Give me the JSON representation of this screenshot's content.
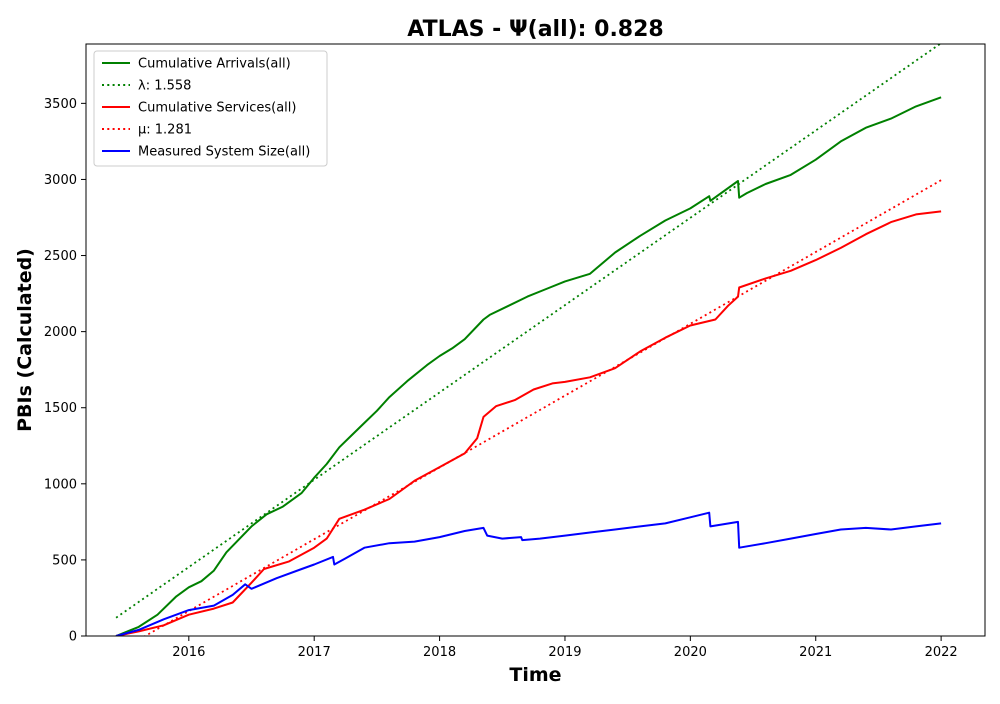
{
  "chart_data": {
    "type": "line",
    "title": "ATLAS -  Ψ(all): 0.828",
    "xlabel": "Time",
    "ylabel": "PBIs (Calculated)",
    "xlim": [
      2015.18,
      2022.35
    ],
    "ylim": [
      0,
      3890
    ],
    "x_ticks": [
      2016,
      2017,
      2018,
      2019,
      2020,
      2021,
      2022
    ],
    "x_tick_labels": [
      "2016",
      "2017",
      "2018",
      "2019",
      "2020",
      "2021",
      "2022"
    ],
    "y_ticks": [
      0,
      500,
      1000,
      1500,
      2000,
      2500,
      3000,
      3500
    ],
    "y_tick_labels": [
      "0",
      "500",
      "1000",
      "1500",
      "2000",
      "2500",
      "3000",
      "3500"
    ],
    "grid": false,
    "legend_position": "top-left",
    "series": [
      {
        "name": "Cumulative Arrivals(all)",
        "color": "#008000",
        "style": "solid",
        "x": [
          2015.42,
          2015.6,
          2015.75,
          2015.9,
          2016.0,
          2016.1,
          2016.2,
          2016.3,
          2016.5,
          2016.62,
          2016.75,
          2016.9,
          2017.0,
          2017.1,
          2017.2,
          2017.3,
          2017.4,
          2017.5,
          2017.6,
          2017.75,
          2017.9,
          2018.0,
          2018.1,
          2018.2,
          2018.35,
          2018.4,
          2018.55,
          2018.7,
          2018.85,
          2019.0,
          2019.2,
          2019.4,
          2019.6,
          2019.8,
          2020.0,
          2020.15,
          2020.16,
          2020.38,
          2020.39,
          2020.45,
          2020.6,
          2020.8,
          2021.0,
          2021.2,
          2021.4,
          2021.6,
          2021.8,
          2022.0
        ],
        "values": [
          0,
          60,
          140,
          260,
          320,
          360,
          430,
          550,
          720,
          800,
          850,
          940,
          1040,
          1130,
          1240,
          1320,
          1400,
          1480,
          1570,
          1680,
          1780,
          1840,
          1890,
          1950,
          2080,
          2110,
          2170,
          2230,
          2280,
          2330,
          2380,
          2520,
          2630,
          2730,
          2810,
          2890,
          2860,
          2990,
          2880,
          2910,
          2970,
          3030,
          3130,
          3250,
          3340,
          3400,
          3480,
          3540
        ]
      },
      {
        "name": "λ: 1.558",
        "color": "#008000",
        "style": "dotted",
        "x": [
          2015.42,
          2022.0
        ],
        "values": [
          120,
          3895
        ]
      },
      {
        "name": "Cumulative Services(all)",
        "color": "#ff0000",
        "style": "solid",
        "x": [
          2015.42,
          2015.6,
          2015.8,
          2016.0,
          2016.2,
          2016.35,
          2016.5,
          2016.6,
          2016.8,
          2017.0,
          2017.1,
          2017.2,
          2017.4,
          2017.6,
          2017.8,
          2018.0,
          2018.2,
          2018.3,
          2018.35,
          2018.45,
          2018.6,
          2018.75,
          2018.9,
          2019.0,
          2019.2,
          2019.4,
          2019.6,
          2019.8,
          2020.0,
          2020.2,
          2020.3,
          2020.38,
          2020.39,
          2020.6,
          2020.8,
          2021.0,
          2021.2,
          2021.4,
          2021.6,
          2021.8,
          2022.0
        ],
        "values": [
          0,
          30,
          70,
          140,
          180,
          220,
          350,
          440,
          490,
          580,
          640,
          770,
          830,
          900,
          1020,
          1110,
          1200,
          1300,
          1440,
          1510,
          1550,
          1620,
          1660,
          1670,
          1700,
          1760,
          1870,
          1960,
          2040,
          2080,
          2170,
          2230,
          2290,
          2350,
          2400,
          2470,
          2550,
          2640,
          2720,
          2770,
          2790
        ]
      },
      {
        "name": "μ: 1.281",
        "color": "#ff0000",
        "style": "dotted",
        "x": [
          2015.42,
          2022.0
        ],
        "values": [
          -110,
          2995
        ]
      },
      {
        "name": "Measured System Size(all)",
        "color": "#0000ff",
        "style": "solid",
        "x": [
          2015.42,
          2015.6,
          2015.8,
          2016.0,
          2016.2,
          2016.35,
          2016.45,
          2016.5,
          2016.7,
          2016.9,
          2017.0,
          2017.15,
          2017.16,
          2017.25,
          2017.4,
          2017.6,
          2017.8,
          2018.0,
          2018.2,
          2018.35,
          2018.38,
          2018.5,
          2018.65,
          2018.66,
          2018.8,
          2019.0,
          2019.2,
          2019.4,
          2019.6,
          2019.8,
          2020.0,
          2020.15,
          2020.16,
          2020.38,
          2020.39,
          2020.6,
          2020.8,
          2021.0,
          2021.2,
          2021.4,
          2021.6,
          2021.8,
          2022.0
        ],
        "values": [
          0,
          40,
          110,
          170,
          200,
          270,
          340,
          310,
          380,
          440,
          470,
          520,
          470,
          510,
          580,
          610,
          620,
          650,
          690,
          710,
          660,
          640,
          650,
          630,
          640,
          660,
          680,
          700,
          720,
          740,
          780,
          810,
          720,
          750,
          580,
          610,
          640,
          670,
          700,
          710,
          700,
          720,
          740
        ]
      }
    ]
  }
}
